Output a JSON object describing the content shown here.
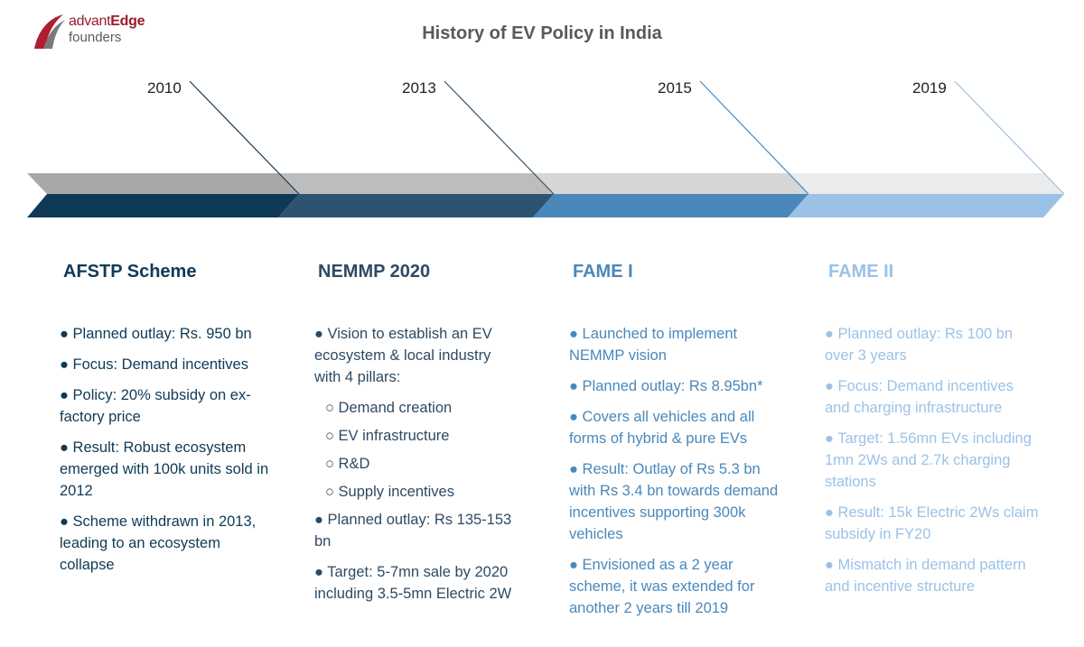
{
  "logo": {
    "brand_a": "advant",
    "brand_b": "Edge",
    "line2": "founders"
  },
  "title": "History of EV Policy in India",
  "colors": {
    "c1": "#0f3a57",
    "c2": "#2e5370",
    "c3": "#4a88bb",
    "c4": "#9ac2e6",
    "g1": "#a8a8a8",
    "g2": "#bdbdbd",
    "g3": "#d6d6d6",
    "g4": "#ebebeb"
  },
  "phases": [
    {
      "year": "2010",
      "name": "AFSTP Scheme",
      "items": [
        "● Planned outlay:  Rs. 950 bn",
        "● Focus: Demand incentives",
        "● Policy: 20% subsidy on ex-factory price",
        "● Result: Robust ecosystem emerged with 100k units sold in 2012",
        "● Scheme withdrawn in 2013, leading to an ecosystem collapse"
      ]
    },
    {
      "year": "2013",
      "name": "NEMMP 2020",
      "items": [
        "● Vision to establish an EV ecosystem & local industry with 4 pillars:"
      ],
      "subitems": [
        "○ Demand creation",
        "○ EV infrastructure",
        "○ R&D",
        "○ Supply incentives"
      ],
      "items_after": [
        "● Planned outlay: Rs 135-153 bn",
        "● Target: 5-7mn sale by 2020 including 3.5-5mn Electric 2W"
      ]
    },
    {
      "year": "2015",
      "name": "FAME I",
      "items": [
        "● Launched to implement NEMMP vision",
        "● Planned outlay: Rs 8.95bn*",
        "● Covers all vehicles and all forms of hybrid & pure EVs",
        "● Result: Outlay of Rs 5.3 bn with Rs 3.4 bn towards demand incentives supporting 300k vehicles",
        "● Envisioned as a 2 year scheme, it was extended for another 2 years till 2019"
      ]
    },
    {
      "year": "2019",
      "name": "FAME II",
      "items": [
        "● Planned  outlay: Rs 100 bn over 3 years",
        "● Focus: Demand incentives and charging infrastructure",
        "● Target: 1.56mn EVs including 1mn 2Ws and 2.7k charging stations",
        "● Result: 15k Electric 2Ws claim subsidy in FY20",
        "● Mismatch in demand pattern and incentive structure"
      ]
    }
  ]
}
